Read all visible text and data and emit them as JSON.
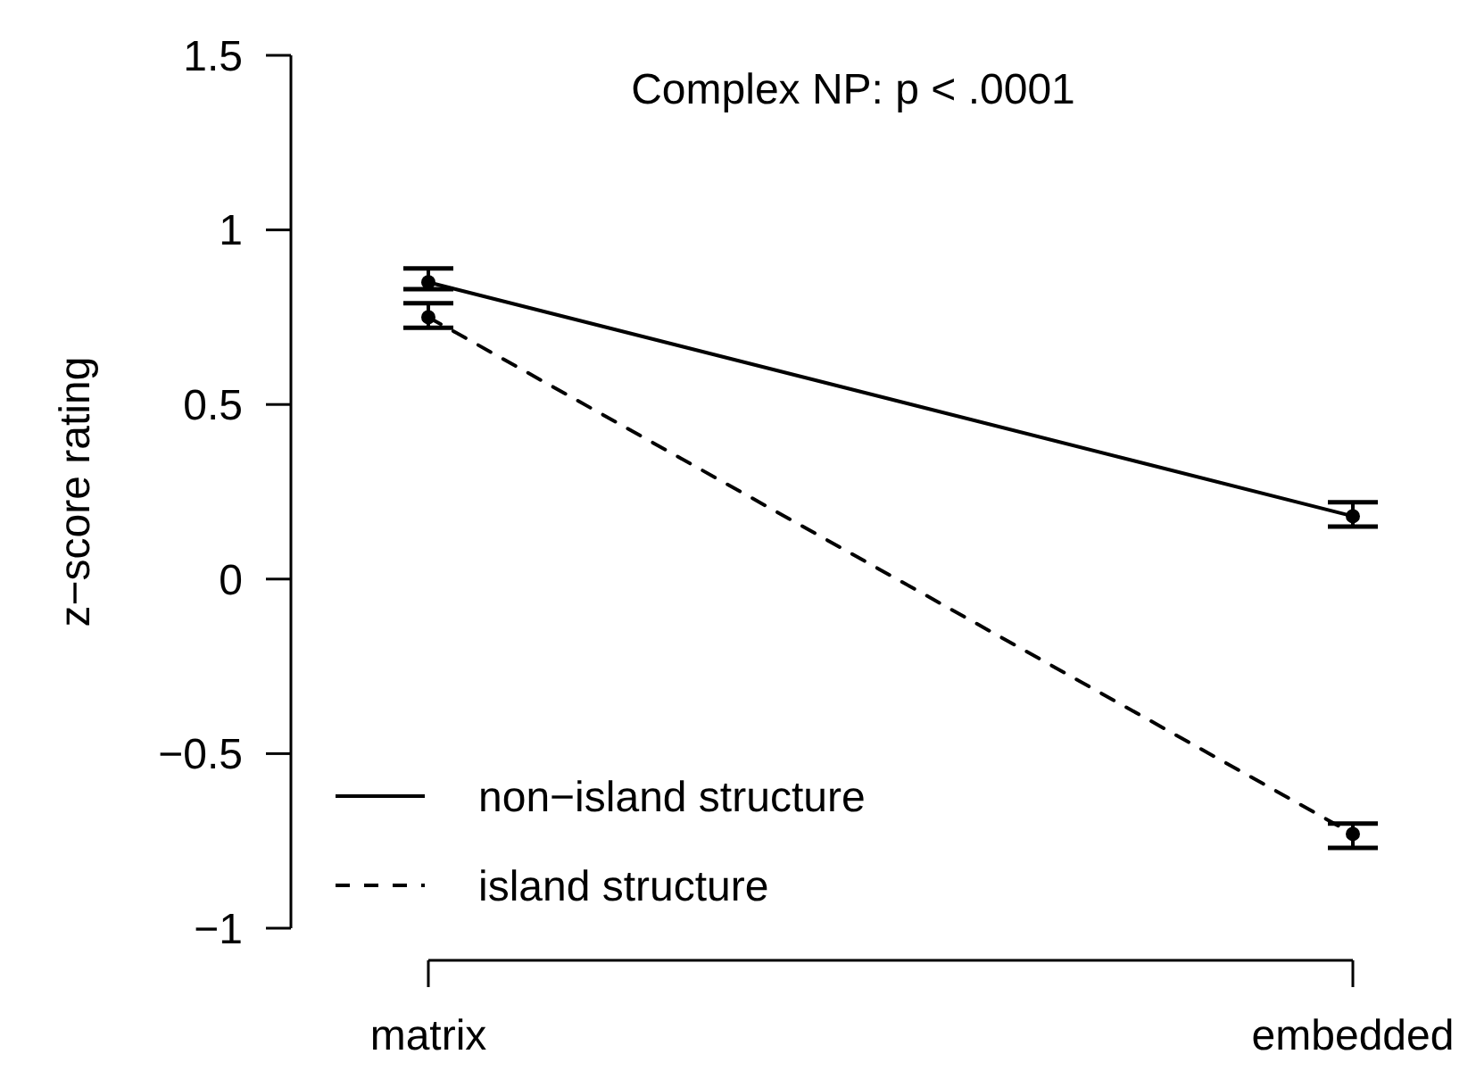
{
  "chart_data": {
    "type": "line",
    "title": "Complex NP: p < .0001",
    "ylabel": "z−score rating",
    "categories": [
      "matrix",
      "embedded"
    ],
    "series": [
      {
        "name": "non−island structure",
        "color": "#000000",
        "line_style": "solid",
        "values": [
          0.85,
          0.18
        ],
        "errors": [
          [
            0.83,
            0.89
          ],
          [
            0.15,
            0.22
          ]
        ]
      },
      {
        "name": "island structure",
        "color": "#000000",
        "line_style": "dashed",
        "values": [
          0.75,
          -0.73
        ],
        "errors": [
          [
            0.72,
            0.79
          ],
          [
            -0.77,
            -0.7
          ]
        ]
      }
    ],
    "ylim": [
      -1,
      1.5
    ],
    "yticks": [
      {
        "value": -1,
        "label": "−1"
      },
      {
        "value": -0.5,
        "label": "−0.5"
      },
      0,
      0.5,
      1,
      1.5
    ],
    "marker": "circle",
    "grid": false,
    "legend": "bottom left"
  }
}
